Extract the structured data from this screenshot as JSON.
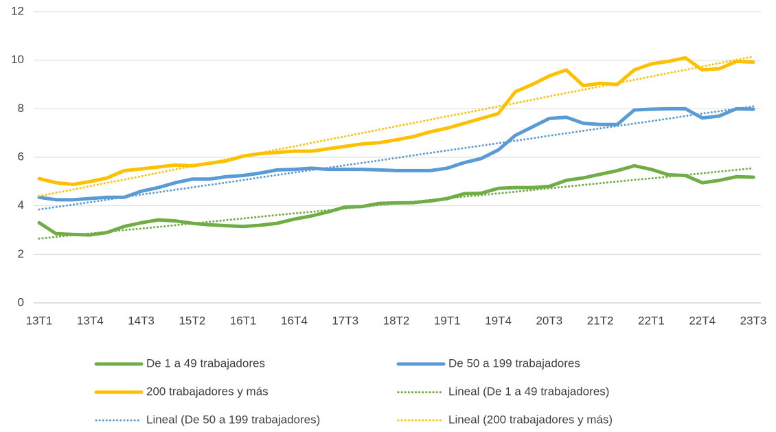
{
  "chart_data": {
    "type": "line",
    "categories": [
      "13T1",
      null,
      null,
      "13T4",
      null,
      null,
      "14T3",
      null,
      null,
      "15T2",
      null,
      null,
      "16T1",
      null,
      null,
      "16T4",
      null,
      null,
      "17T3",
      null,
      null,
      "18T2",
      null,
      null,
      "19T1",
      null,
      null,
      "19T4",
      null,
      null,
      "20T3",
      null,
      null,
      "21T2",
      null,
      null,
      "22T1",
      null,
      null,
      "22T4",
      null,
      null,
      "23T3"
    ],
    "series": [
      {
        "name": "De 1 a 49 trabajadores",
        "color": "#70ad47",
        "style": "solid",
        "values": [
          3.3,
          2.85,
          2.82,
          2.8,
          2.9,
          3.15,
          3.3,
          3.42,
          3.38,
          3.28,
          3.22,
          3.18,
          3.15,
          3.2,
          3.28,
          3.45,
          3.58,
          3.75,
          3.95,
          3.97,
          4.1,
          4.12,
          4.13,
          4.2,
          4.3,
          4.5,
          4.52,
          4.72,
          4.75,
          4.75,
          4.8,
          5.05,
          5.15,
          5.3,
          5.45,
          5.65,
          5.5,
          5.28,
          5.25,
          4.95,
          5.05,
          5.2,
          5.18
        ]
      },
      {
        "name": "De 50 a 199 trabajadores",
        "color": "#5b9bd5",
        "style": "solid",
        "values": [
          4.35,
          4.25,
          4.25,
          4.3,
          4.35,
          4.35,
          4.6,
          4.75,
          4.95,
          5.1,
          5.1,
          5.2,
          5.25,
          5.35,
          5.48,
          5.5,
          5.55,
          5.5,
          5.5,
          5.5,
          5.48,
          5.45,
          5.45,
          5.45,
          5.55,
          5.78,
          5.95,
          6.3,
          6.9,
          7.25,
          7.6,
          7.65,
          7.4,
          7.35,
          7.35,
          7.95,
          7.98,
          8.0,
          8.0,
          7.62,
          7.7,
          8.0,
          7.98
        ]
      },
      {
        "name": "200 trabajadores y más",
        "color": "#ffc000",
        "style": "solid",
        "values": [
          5.12,
          4.95,
          4.88,
          5.0,
          5.15,
          5.45,
          5.52,
          5.6,
          5.68,
          5.65,
          5.75,
          5.85,
          6.05,
          6.15,
          6.2,
          6.25,
          6.25,
          6.35,
          6.45,
          6.55,
          6.6,
          6.72,
          6.85,
          7.05,
          7.2,
          7.4,
          7.6,
          7.8,
          8.7,
          9.0,
          9.35,
          9.6,
          8.95,
          9.05,
          9.0,
          9.6,
          9.85,
          9.95,
          10.1,
          9.6,
          9.65,
          9.95,
          9.92
        ]
      },
      {
        "name": "Lineal (De 1 a 49 trabajadores)",
        "color": "#70ad47",
        "style": "dotted",
        "values": [
          2.65,
          2.72,
          2.79,
          2.86,
          2.93,
          3.0,
          3.06,
          3.13,
          3.2,
          3.27,
          3.34,
          3.41,
          3.48,
          3.55,
          3.62,
          3.69,
          3.75,
          3.82,
          3.89,
          3.96,
          4.03,
          4.1,
          4.17,
          4.24,
          4.31,
          4.38,
          4.44,
          4.51,
          4.58,
          4.65,
          4.72,
          4.79,
          4.86,
          4.93,
          5.0,
          5.07,
          5.13,
          5.2,
          5.27,
          5.34,
          5.41,
          5.48,
          5.55
        ]
      },
      {
        "name": "Lineal (De 50 a 199 trabajadores)",
        "color": "#5b9bd5",
        "style": "dotted",
        "values": [
          3.85,
          3.95,
          4.05,
          4.15,
          4.25,
          4.36,
          4.46,
          4.56,
          4.66,
          4.76,
          4.86,
          4.96,
          5.06,
          5.17,
          5.27,
          5.37,
          5.47,
          5.57,
          5.67,
          5.77,
          5.87,
          5.97,
          6.08,
          6.18,
          6.28,
          6.38,
          6.48,
          6.58,
          6.68,
          6.78,
          6.89,
          6.99,
          7.09,
          7.19,
          7.29,
          7.39,
          7.49,
          7.59,
          7.7,
          7.8,
          7.9,
          8.0,
          8.1
        ]
      },
      {
        "name": "Lineal (200 trabajadores y más)",
        "color": "#ffc000",
        "style": "dotted",
        "values": [
          4.4,
          4.54,
          4.67,
          4.81,
          4.95,
          5.08,
          5.22,
          5.36,
          5.5,
          5.63,
          5.77,
          5.91,
          6.04,
          6.18,
          6.32,
          6.45,
          6.59,
          6.73,
          6.86,
          7.0,
          7.14,
          7.28,
          7.41,
          7.55,
          7.69,
          7.82,
          7.96,
          8.1,
          8.23,
          8.37,
          8.51,
          8.65,
          8.78,
          8.92,
          9.06,
          9.19,
          9.33,
          9.47,
          9.6,
          9.74,
          9.88,
          10.01,
          10.15
        ]
      }
    ],
    "ylim": [
      0,
      12
    ],
    "yticks": [
      0,
      2,
      4,
      6,
      8,
      10,
      12
    ],
    "grid": true,
    "legend": "bottom"
  }
}
